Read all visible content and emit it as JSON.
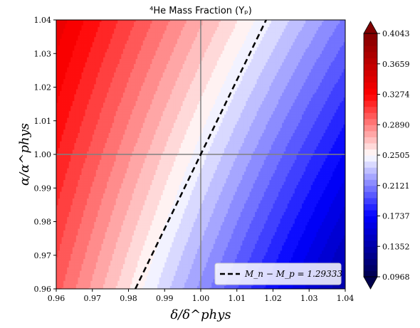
{
  "chart_data": {
    "type": "heatmap",
    "title": "⁴He Mass Fraction (Yₚ)",
    "xlabel": "δ/δ^phys",
    "ylabel": "α/α^phys",
    "xlim": [
      0.96,
      1.04
    ],
    "ylim": [
      0.96,
      1.04
    ],
    "x_ticks": [
      "0.96",
      "0.97",
      "0.98",
      "0.99",
      "1.00",
      "1.01",
      "1.02",
      "1.03",
      "1.04"
    ],
    "y_ticks": [
      "0.96",
      "0.97",
      "0.98",
      "0.99",
      "1.00",
      "1.01",
      "1.02",
      "1.03",
      "1.04"
    ],
    "colorbar": {
      "range": [
        0.0968,
        0.4043
      ],
      "ticks": [
        "0.0968",
        "0.1352",
        "0.1737",
        "0.2121",
        "0.2505",
        "0.2890",
        "0.3274",
        "0.3659",
        "0.4043"
      ],
      "colormap": "seismic",
      "extend": "both"
    },
    "corner_values": {
      "x0.96_y1.04": 0.34,
      "x1.04_y1.04": 0.21,
      "x0.96_y0.96": 0.3,
      "x1.04_y0.96": 0.135
    },
    "reference_lines": {
      "x": 1.0,
      "y": 1.0
    },
    "contour_line": {
      "label": "M_n − M_p = 1.29333",
      "style": "dashed",
      "color": "#000000",
      "points": [
        [
          0.9819,
          0.96
        ],
        [
          1.0181,
          1.04
        ]
      ]
    },
    "legend_placement": "lower-right",
    "grid": false
  }
}
